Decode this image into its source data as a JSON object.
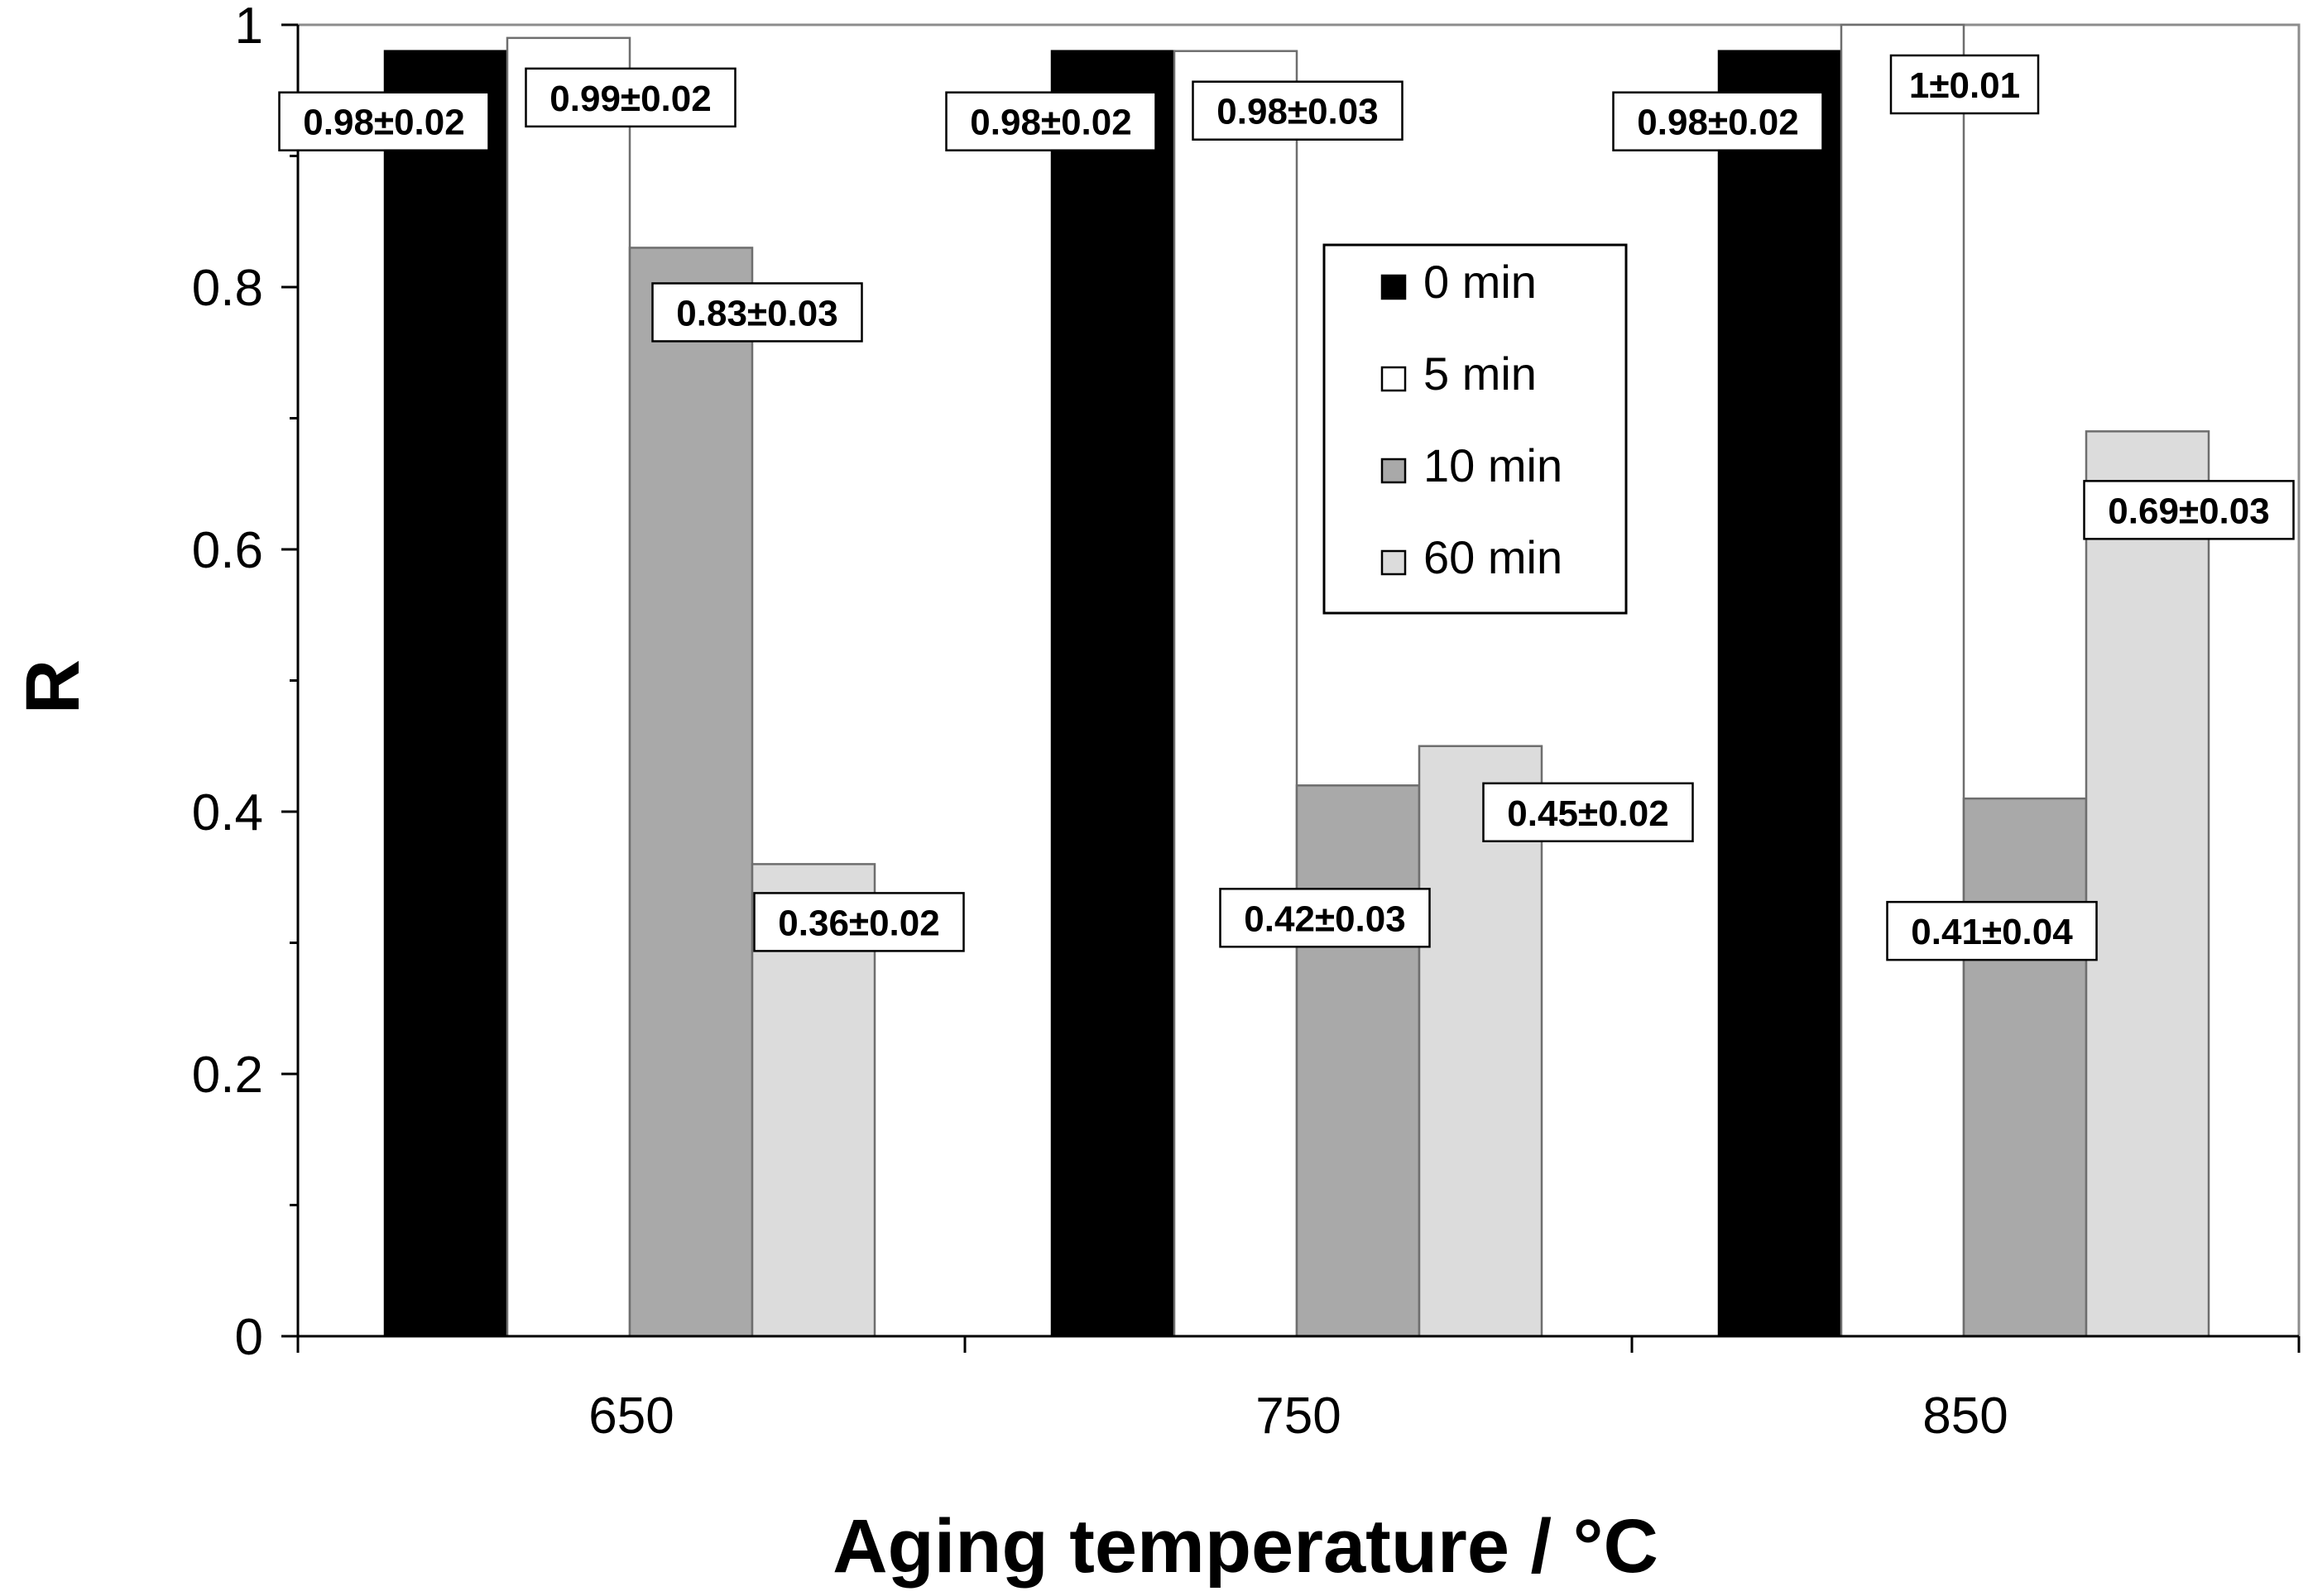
{
  "chart_data": {
    "type": "bar",
    "title": "",
    "xlabel": "Aging temperature / °C",
    "ylabel": "R",
    "categories": [
      "650",
      "750",
      "850"
    ],
    "ylim": [
      0,
      1
    ],
    "yticks": [
      "0",
      "0.2",
      "0.4",
      "0.6",
      "0.8",
      "1"
    ],
    "grid": false,
    "legend_position": "top-center",
    "series": [
      {
        "name": "0 min",
        "color": "#000000",
        "values": [
          0.98,
          0.98,
          0.98
        ],
        "labels": [
          "0.98±0.02",
          "0.98±0.02",
          "0.98±0.02"
        ]
      },
      {
        "name": "5 min",
        "color": "#ffffff",
        "values": [
          0.99,
          0.98,
          1.0
        ],
        "labels": [
          "0.99±0.02",
          "0.98±0.03",
          "1±0.01"
        ]
      },
      {
        "name": "10 min",
        "color": "#a9a9a9",
        "values": [
          0.83,
          0.42,
          0.41
        ],
        "labels": [
          "0.83±0.03",
          "0.42±0.03",
          "0.41±0.04"
        ]
      },
      {
        "name": "60 min",
        "color": "#dcdcdc",
        "values": [
          0.36,
          0.45,
          0.69
        ],
        "labels": [
          "0.36±0.02",
          "0.45±0.02",
          "0.69±0.03"
        ]
      }
    ]
  }
}
